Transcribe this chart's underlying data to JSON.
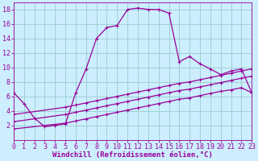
{
  "xlabel": "Windchill (Refroidissement éolien,°C)",
  "bg_color": "#cceeff",
  "grid_color": "#99cccc",
  "line_color": "#990099",
  "xlim": [
    0,
    23
  ],
  "ylim": [
    0,
    19
  ],
  "xticks": [
    0,
    1,
    2,
    3,
    4,
    5,
    6,
    7,
    8,
    9,
    10,
    11,
    12,
    13,
    14,
    15,
    16,
    17,
    18,
    19,
    20,
    21,
    22,
    23
  ],
  "yticks": [
    2,
    4,
    6,
    8,
    10,
    12,
    14,
    16,
    18
  ],
  "curve1_x": [
    0,
    1,
    2,
    3,
    4,
    5,
    6,
    7,
    8,
    9,
    10,
    11,
    12,
    13,
    14,
    15,
    16,
    17,
    18,
    19,
    20,
    21,
    22,
    23
  ],
  "curve1_y": [
    6.5,
    5.0,
    3.0,
    1.8,
    2.0,
    2.2,
    6.5,
    9.8,
    14.0,
    15.5,
    15.8,
    18.0,
    18.2,
    18.0,
    18.0,
    17.5,
    10.8,
    11.5,
    10.5,
    9.8,
    9.0,
    9.5,
    9.8,
    6.5
  ],
  "curve2_x": [
    0,
    5,
    6,
    7,
    8,
    9,
    10,
    11,
    12,
    13,
    14,
    15,
    16,
    17,
    18,
    19,
    20,
    21,
    22,
    23
  ],
  "curve2_y": [
    3.5,
    4.5,
    4.8,
    5.1,
    5.4,
    5.7,
    6.0,
    6.3,
    6.6,
    6.9,
    7.2,
    7.5,
    7.8,
    8.0,
    8.3,
    8.6,
    8.9,
    9.2,
    9.5,
    9.8
  ],
  "curve3_x": [
    0,
    5,
    6,
    7,
    8,
    9,
    10,
    11,
    12,
    13,
    14,
    15,
    16,
    17,
    18,
    19,
    20,
    21,
    22,
    23
  ],
  "curve3_y": [
    2.5,
    3.5,
    3.8,
    4.1,
    4.4,
    4.7,
    5.0,
    5.3,
    5.6,
    5.9,
    6.2,
    6.5,
    6.8,
    7.0,
    7.3,
    7.6,
    7.9,
    8.2,
    8.5,
    8.8
  ],
  "curve4_x": [
    0,
    5,
    6,
    7,
    8,
    9,
    10,
    11,
    12,
    13,
    14,
    15,
    16,
    17,
    18,
    19,
    20,
    21,
    22,
    23
  ],
  "curve4_y": [
    1.5,
    2.3,
    2.6,
    2.9,
    3.2,
    3.5,
    3.8,
    4.1,
    4.4,
    4.7,
    5.0,
    5.3,
    5.6,
    5.8,
    6.1,
    6.4,
    6.7,
    6.9,
    7.2,
    6.5
  ],
  "xlabel_fontsize": 6.5,
  "tick_fontsize": 6.0
}
